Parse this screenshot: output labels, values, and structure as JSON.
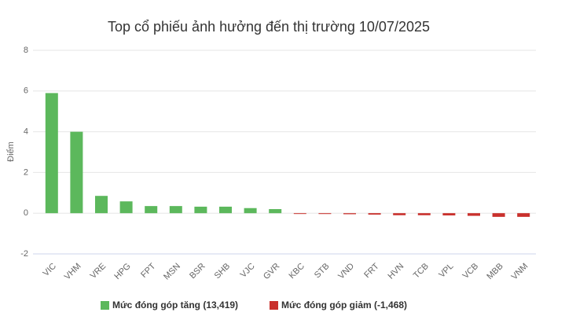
{
  "chart_data": {
    "type": "bar",
    "title": "Top cổ phiếu ảnh hưởng đến thị trường 10/07/2025",
    "y_label": "Điểm",
    "categories": [
      "VIC",
      "VHM",
      "VRE",
      "HPG",
      "FPT",
      "MSN",
      "BSR",
      "SHB",
      "VJC",
      "GVR",
      "KBC",
      "STB",
      "VND",
      "FRT",
      "HVN",
      "TCB",
      "VPL",
      "VCB",
      "MBB",
      "VNM"
    ],
    "series": [
      {
        "name": "Mức đóng góp tăng (13,419)",
        "color": "#5cb85c",
        "values": [
          5.9,
          4.0,
          0.85,
          0.58,
          0.35,
          0.35,
          0.32,
          0.32,
          0.25,
          0.2,
          null,
          null,
          null,
          null,
          null,
          null,
          null,
          null,
          null,
          null
        ]
      },
      {
        "name": "Mức đóng góp giảm (-1,468)",
        "color": "#c9302c",
        "values": [
          null,
          null,
          null,
          null,
          null,
          null,
          null,
          null,
          null,
          null,
          -0.03,
          -0.04,
          -0.05,
          -0.07,
          -0.1,
          -0.1,
          -0.11,
          -0.13,
          -0.18,
          -0.18
        ]
      }
    ],
    "ylim": [
      -2,
      8
    ],
    "yticks": [
      -2,
      0,
      2,
      4,
      6,
      8
    ],
    "grid": true
  }
}
